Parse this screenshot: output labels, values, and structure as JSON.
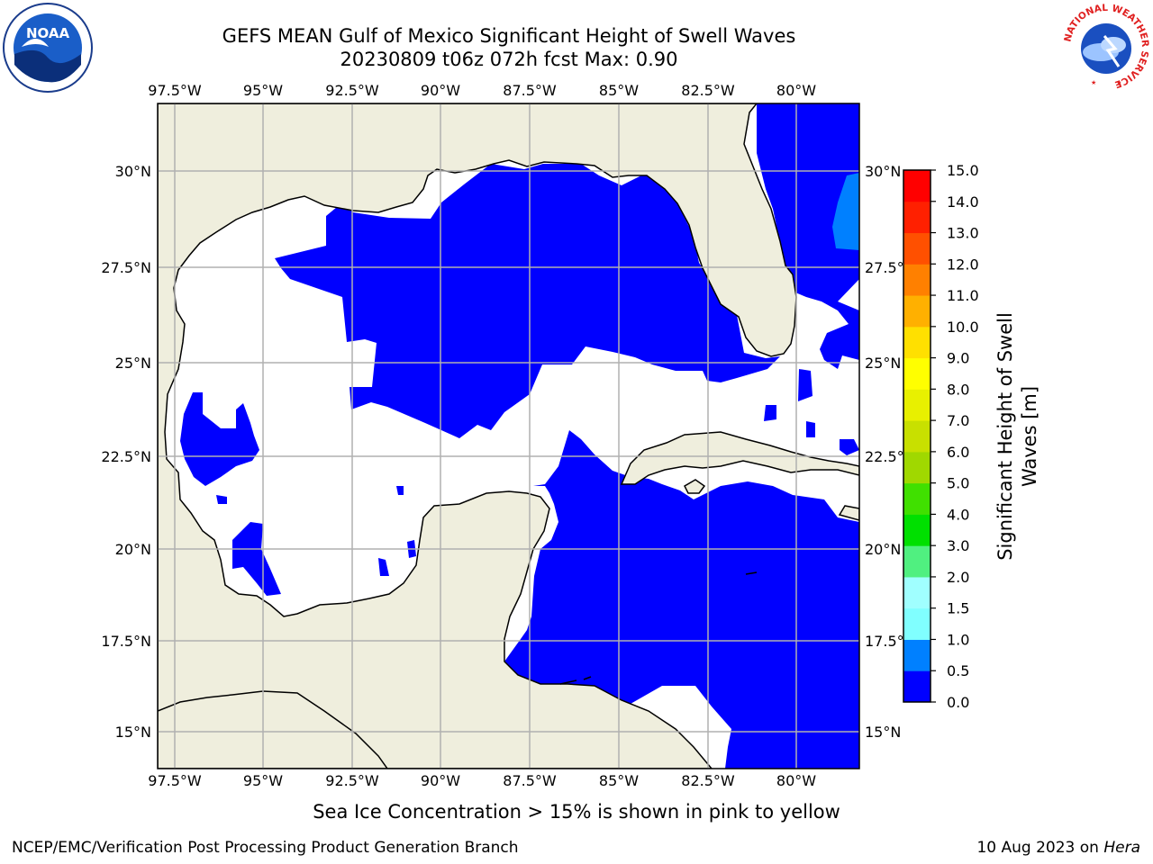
{
  "header": {
    "title_line1": "GEFS MEAN Gulf of Mexico Significant Height of Swell Waves",
    "title_line2": "20230809 t06z 072h fcst   Max: 0.90"
  },
  "map": {
    "longitude_labels": [
      "97.5°W",
      "95°W",
      "92.5°W",
      "90°W",
      "87.5°W",
      "85°W",
      "82.5°W",
      "80°W"
    ],
    "latitude_labels_left": [
      "30°N",
      "27.5°N",
      "25°N",
      "22.5°N",
      "20°N",
      "17.5°N",
      "15°N"
    ],
    "latitude_labels_right": [
      "30°N",
      "27.5°N",
      "25°N",
      "22.5°N",
      "20°N",
      "17.5°N",
      "15°N"
    ],
    "colors": {
      "land": "#efeedd",
      "swell_0_0_5": "#0000ff",
      "swell_0_5_1_0": "#0080ff",
      "no_data": "#ffffff",
      "grid": "#b0b0b0"
    }
  },
  "colorbar": {
    "label": "Significant Height of Swell Waves [m]",
    "label_line1": "Significant Height of Swell",
    "label_line2": "Waves [m]",
    "ticks": [
      "0.0",
      "0.5",
      "1.0",
      "1.5",
      "2.0",
      "3.0",
      "4.0",
      "5.0",
      "6.0",
      "7.0",
      "8.0",
      "9.0",
      "10.0",
      "11.0",
      "12.0",
      "13.0",
      "14.0",
      "15.0"
    ],
    "colors": [
      "#0000ff",
      "#0080ff",
      "#00ffff",
      "#40ffff",
      "#80ffff",
      "#a0ffff",
      "#50f080",
      "#00e000",
      "#40e000",
      "#a0d800",
      "#c8e000",
      "#e8f000",
      "#ffff00",
      "#ffe000",
      "#ffb000",
      "#ff8000",
      "#ff5000",
      "#ff2000",
      "#ff0000"
    ]
  },
  "note": "Sea Ice Concentration > 15% is shown in pink to yellow",
  "footer": {
    "left": "NCEP/EMC/Verification Post Processing Product Generation Branch",
    "right_prefix": "10 Aug 2023 on ",
    "right_host": "Hera"
  },
  "logos": {
    "noaa_text": "NOAA",
    "nws_text": "NATIONAL WEATHER SERVICE"
  }
}
